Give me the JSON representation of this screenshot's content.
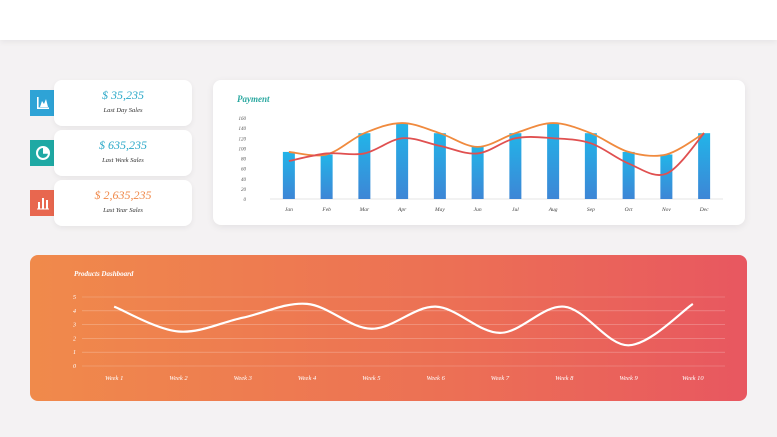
{
  "stats": [
    {
      "value": "$ 35,235",
      "label": "Last Day Sales",
      "icon": "chart-icon",
      "color": "#2ea3d6",
      "value_color": "#2aa8c8"
    },
    {
      "value": "$ 635,235",
      "label": "Last Week Sales",
      "icon": "pie-chart-icon",
      "color": "#1fa9a4",
      "value_color": "#2aa8c8"
    },
    {
      "value": "$ 2,635,235",
      "label": "Last Year Sales",
      "icon": "bar-chart-icon",
      "color": "#e8674f",
      "value_color": "#f0894a"
    }
  ],
  "payment": {
    "title": "Payment",
    "chart_data": {
      "type": "bar",
      "categories": [
        "Jan",
        "Feb",
        "Mar",
        "Apr",
        "May",
        "Jun",
        "Jul",
        "Aug",
        "Sep",
        "Oct",
        "Nov",
        "Dec"
      ],
      "ylim": [
        0,
        160
      ],
      "yticks": [
        "0",
        "20",
        "40",
        "60",
        "80",
        "100",
        "120",
        "140",
        "160"
      ],
      "series": [
        {
          "type": "bar",
          "values": [
            93,
            88,
            130,
            150,
            130,
            103,
            130,
            150,
            130,
            93,
            88,
            130
          ],
          "color": "#2e9ee0"
        },
        {
          "type": "line",
          "values": [
            93,
            88,
            130,
            150,
            130,
            103,
            130,
            150,
            130,
            93,
            88,
            130
          ],
          "color": "#f08a3e"
        },
        {
          "type": "line",
          "values": [
            75,
            90,
            90,
            120,
            105,
            90,
            120,
            120,
            110,
            70,
            50,
            130
          ],
          "color": "#e05050"
        }
      ]
    }
  },
  "products": {
    "title": "Products Dashboard",
    "chart_data": {
      "type": "line",
      "categories": [
        "Week 1",
        "Week 2",
        "Week 3",
        "Week 4",
        "Week 5",
        "Week 6",
        "Week 7",
        "Week 8",
        "Week 9",
        "Week 10"
      ],
      "ylim": [
        0,
        5
      ],
      "yticks": [
        "0",
        "1",
        "2",
        "3",
        "4",
        "5"
      ],
      "series": [
        {
          "values": [
            4.3,
            2.5,
            3.5,
            4.5,
            2.7,
            4.3,
            2.4,
            4.3,
            1.5,
            4.5
          ],
          "color": "#ffffff"
        }
      ]
    }
  }
}
